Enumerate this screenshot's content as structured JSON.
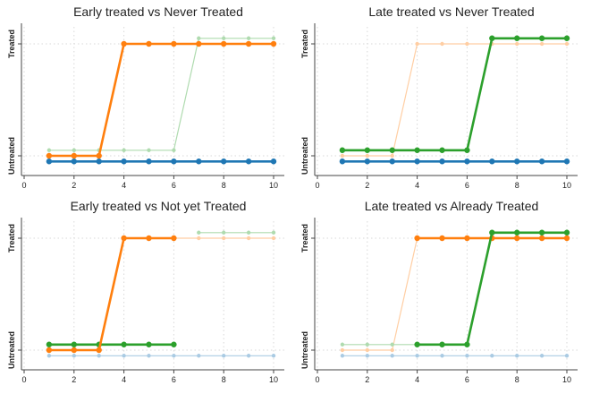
{
  "colors": {
    "early": "#ff7f0e",
    "late": "#2ca02c",
    "never": "#1f77b4"
  },
  "chart_data": [
    {
      "type": "line",
      "title": "Early treated vs Never Treated",
      "xlim": [
        0,
        10.5
      ],
      "x_ticks": [
        0,
        2,
        4,
        6,
        8,
        10
      ],
      "y_ticks": [
        "Untreated",
        "Treated"
      ],
      "grid": true,
      "x": [
        1,
        2,
        3,
        4,
        5,
        6,
        7,
        8,
        9,
        10
      ],
      "series": [
        {
          "group": "late",
          "emphasis": "faded",
          "values": [
            0.05,
            0.05,
            0.05,
            0.05,
            0.05,
            0.05,
            1.05,
            1.05,
            1.05,
            1.05
          ]
        },
        {
          "group": "never",
          "emphasis": "bold",
          "values": [
            -0.05,
            -0.05,
            -0.05,
            -0.05,
            -0.05,
            -0.05,
            -0.05,
            -0.05,
            -0.05,
            -0.05
          ]
        },
        {
          "group": "early",
          "emphasis": "bold",
          "values": [
            0,
            0,
            0,
            1,
            1,
            1,
            1,
            1,
            1,
            1
          ]
        }
      ]
    },
    {
      "type": "line",
      "title": "Late treated vs Never Treated",
      "xlim": [
        0,
        10.5
      ],
      "x_ticks": [
        0,
        2,
        4,
        6,
        8,
        10
      ],
      "y_ticks": [
        "Untreated",
        "Treated"
      ],
      "grid": true,
      "x": [
        1,
        2,
        3,
        4,
        5,
        6,
        7,
        8,
        9,
        10
      ],
      "series": [
        {
          "group": "early",
          "emphasis": "faded",
          "values": [
            0,
            0,
            0,
            1,
            1,
            1,
            1,
            1,
            1,
            1
          ]
        },
        {
          "group": "never",
          "emphasis": "bold",
          "values": [
            -0.05,
            -0.05,
            -0.05,
            -0.05,
            -0.05,
            -0.05,
            -0.05,
            -0.05,
            -0.05,
            -0.05
          ]
        },
        {
          "group": "late",
          "emphasis": "bold",
          "values": [
            0.05,
            0.05,
            0.05,
            0.05,
            0.05,
            0.05,
            1.05,
            1.05,
            1.05,
            1.05
          ]
        }
      ]
    },
    {
      "type": "line",
      "title": "Early treated vs Not yet Treated",
      "xlim": [
        0,
        10.5
      ],
      "x_ticks": [
        0,
        2,
        4,
        6,
        8,
        10
      ],
      "y_ticks": [
        "Untreated",
        "Treated"
      ],
      "grid": true,
      "x": [
        1,
        2,
        3,
        4,
        5,
        6,
        7,
        8,
        9,
        10
      ],
      "series": [
        {
          "group": "never",
          "emphasis": "faded",
          "values": [
            -0.05,
            -0.05,
            -0.05,
            -0.05,
            -0.05,
            -0.05,
            -0.05,
            -0.05,
            -0.05,
            -0.05
          ]
        },
        {
          "group": "late",
          "emphasis": "faded",
          "values": [
            null,
            null,
            null,
            null,
            null,
            null,
            1.05,
            1.05,
            1.05,
            1.05
          ]
        },
        {
          "group": "late",
          "emphasis": "bold",
          "values": [
            0.05,
            0.05,
            0.05,
            0.05,
            0.05,
            0.05,
            null,
            null,
            null,
            null
          ]
        },
        {
          "group": "early",
          "emphasis": "bold",
          "values": [
            0,
            0,
            0,
            1,
            1,
            1,
            null,
            null,
            null,
            null
          ]
        },
        {
          "group": "early",
          "emphasis": "faded",
          "values": [
            null,
            null,
            null,
            null,
            null,
            1,
            1,
            1,
            1,
            1
          ]
        }
      ]
    },
    {
      "type": "line",
      "title": "Late treated vs Already Treated",
      "xlim": [
        0,
        10.5
      ],
      "x_ticks": [
        0,
        2,
        4,
        6,
        8,
        10
      ],
      "y_ticks": [
        "Untreated",
        "Treated"
      ],
      "grid": true,
      "x": [
        1,
        2,
        3,
        4,
        5,
        6,
        7,
        8,
        9,
        10
      ],
      "series": [
        {
          "group": "never",
          "emphasis": "faded",
          "values": [
            -0.05,
            -0.05,
            -0.05,
            -0.05,
            -0.05,
            -0.05,
            -0.05,
            -0.05,
            -0.05,
            -0.05
          ]
        },
        {
          "group": "early",
          "emphasis": "faded",
          "values": [
            0,
            0,
            0,
            1,
            null,
            null,
            null,
            null,
            null,
            null
          ]
        },
        {
          "group": "late",
          "emphasis": "faded",
          "values": [
            0.05,
            0.05,
            0.05,
            0.05,
            null,
            null,
            null,
            null,
            null,
            null
          ]
        },
        {
          "group": "early",
          "emphasis": "bold",
          "values": [
            null,
            null,
            null,
            1,
            1,
            1,
            1,
            1,
            1,
            1
          ]
        },
        {
          "group": "late",
          "emphasis": "bold",
          "values": [
            null,
            null,
            null,
            0.05,
            0.05,
            0.05,
            1.05,
            1.05,
            1.05,
            1.05
          ]
        }
      ]
    }
  ]
}
